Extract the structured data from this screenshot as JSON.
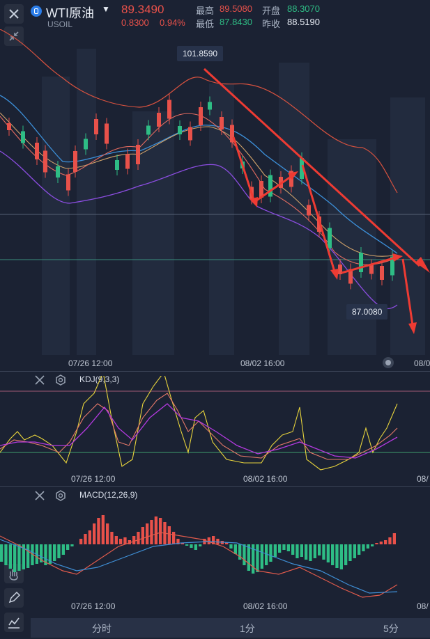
{
  "header": {
    "title": "WTI原油",
    "symbol": "USOIL",
    "price": "89.3490",
    "change": "0.8300",
    "change_pct": "0.94%",
    "high_label": "最高",
    "high_value": "89.5080",
    "open_label": "开盘",
    "open_value": "88.3070",
    "low_label": "最低",
    "low_value": "87.8430",
    "prev_close_label": "昨收",
    "prev_close_value": "88.5190"
  },
  "main_chart": {
    "max_tag": "101.8590",
    "min_tag": "87.0080",
    "x_labels": [
      "07/26 12:00",
      "08/02 16:00",
      "08/0"
    ]
  },
  "kdj": {
    "label": "KDJ(9,3,3)",
    "x_labels": [
      "07/26 12:00",
      "08/02 16:00",
      "08/"
    ]
  },
  "macd": {
    "label": "MACD(12,26,9)",
    "x_labels": [
      "07/26 12:00",
      "08/02 16:00",
      "08/"
    ]
  },
  "tabs": [
    "分时",
    "1分",
    "5分"
  ],
  "colors": {
    "up": "#e8514a",
    "down": "#2ebd85",
    "bg": "#1b2233"
  }
}
